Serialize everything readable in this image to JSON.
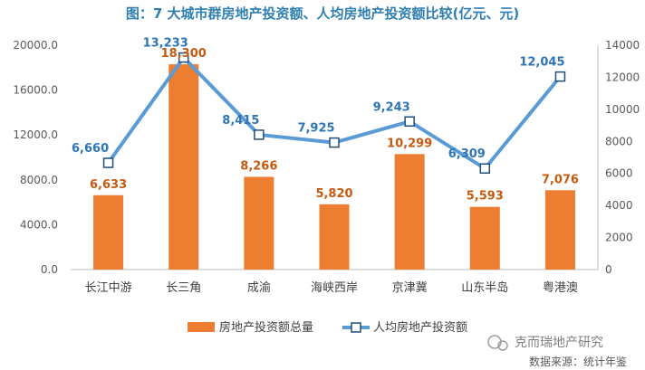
{
  "chart_data": {
    "type": "bar+line",
    "title": "图：7 大城市群房地产投资额、人均房地产投资额比较(亿元、元)",
    "categories": [
      "长江中游",
      "长三角",
      "成渝",
      "海峡西岸",
      "京津冀",
      "山东半岛",
      "粤港澳"
    ],
    "series": [
      {
        "name": "房地产投资额总量",
        "type": "bar",
        "axis": "left",
        "color": "#ed7d31",
        "values": [
          6633,
          18300,
          8266,
          5820,
          10299,
          5593,
          7076
        ],
        "labels": [
          "6,633",
          "18,300",
          "8,266",
          "5,820",
          "10,299",
          "5,593",
          "7,076"
        ]
      },
      {
        "name": "人均房地产投资额",
        "type": "line",
        "axis": "right",
        "color": "#5b9bd5",
        "values": [
          6660,
          13233,
          8415,
          7925,
          9243,
          6309,
          12045
        ],
        "labels": [
          "6,660",
          "13,233",
          "8,415",
          "7,925",
          "9,243",
          "6,309",
          "12,045"
        ]
      }
    ],
    "y_left": {
      "min": 0,
      "max": 20000,
      "ticks": [
        "0.0",
        "4000.0",
        "8000.0",
        "12000.0",
        "16000.0",
        "20000.0"
      ]
    },
    "y_right": {
      "min": 0,
      "max": 14000,
      "ticks": [
        "0",
        "2000",
        "4000",
        "6000",
        "8000",
        "10000",
        "12000",
        "14000"
      ]
    },
    "grid": false,
    "legend_position": "bottom"
  },
  "watermark": "克而瑞地产研究",
  "source": "数据来源：统计年鉴",
  "colors": {
    "bar": "#ed7d31",
    "line": "#5b9bd5",
    "marker_fill": "#ffffff",
    "marker_stroke": "#1f4e79"
  }
}
